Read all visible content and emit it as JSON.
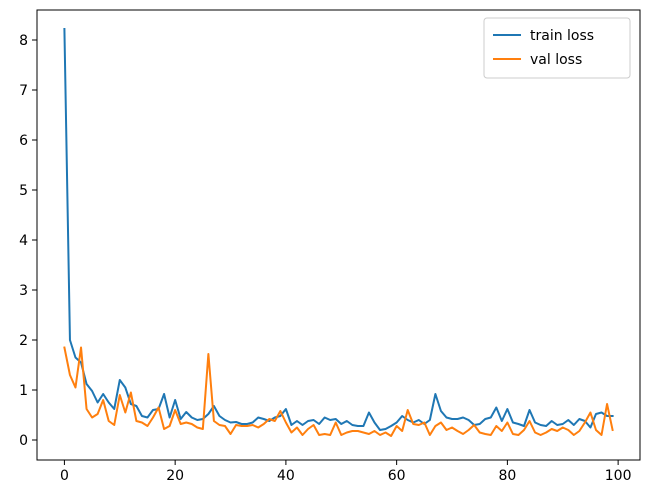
{
  "chart_data": {
    "type": "line",
    "title": "",
    "xlabel": "",
    "ylabel": "",
    "xlim": [
      -4.95,
      103.95
    ],
    "ylim": [
      -0.4,
      8.6
    ],
    "xticks": [
      0,
      20,
      40,
      60,
      80,
      100
    ],
    "yticks": [
      0,
      1,
      2,
      3,
      4,
      5,
      6,
      7,
      8
    ],
    "grid": false,
    "legend": "top-right",
    "x": [
      0,
      1,
      2,
      3,
      4,
      5,
      6,
      7,
      8,
      9,
      10,
      11,
      12,
      13,
      14,
      15,
      16,
      17,
      18,
      19,
      20,
      21,
      22,
      23,
      24,
      25,
      26,
      27,
      28,
      29,
      30,
      31,
      32,
      33,
      34,
      35,
      36,
      37,
      38,
      39,
      40,
      41,
      42,
      43,
      44,
      45,
      46,
      47,
      48,
      49,
      50,
      51,
      52,
      53,
      54,
      55,
      56,
      57,
      58,
      59,
      60,
      61,
      62,
      63,
      64,
      65,
      66,
      67,
      68,
      69,
      70,
      71,
      72,
      73,
      74,
      75,
      76,
      77,
      78,
      79,
      80,
      81,
      82,
      83,
      84,
      85,
      86,
      87,
      88,
      89,
      90,
      91,
      92,
      93,
      94,
      95,
      96,
      97,
      98,
      99
    ],
    "series": [
      {
        "name": "train loss",
        "color": "#1f77b4",
        "values": [
          8.22,
          2.0,
          1.65,
          1.55,
          1.12,
          0.98,
          0.75,
          0.92,
          0.75,
          0.62,
          1.2,
          1.05,
          0.72,
          0.68,
          0.48,
          0.45,
          0.6,
          0.62,
          0.92,
          0.45,
          0.8,
          0.42,
          0.56,
          0.45,
          0.4,
          0.42,
          0.52,
          0.68,
          0.48,
          0.4,
          0.35,
          0.36,
          0.32,
          0.32,
          0.35,
          0.45,
          0.42,
          0.38,
          0.45,
          0.48,
          0.62,
          0.3,
          0.38,
          0.3,
          0.38,
          0.4,
          0.32,
          0.45,
          0.4,
          0.42,
          0.32,
          0.38,
          0.3,
          0.28,
          0.28,
          0.55,
          0.35,
          0.2,
          0.22,
          0.28,
          0.35,
          0.48,
          0.4,
          0.35,
          0.4,
          0.32,
          0.4,
          0.92,
          0.58,
          0.45,
          0.42,
          0.42,
          0.45,
          0.4,
          0.3,
          0.32,
          0.42,
          0.45,
          0.65,
          0.38,
          0.62,
          0.35,
          0.32,
          0.28,
          0.6,
          0.35,
          0.3,
          0.28,
          0.38,
          0.3,
          0.32,
          0.4,
          0.3,
          0.42,
          0.38,
          0.25,
          0.52,
          0.55,
          0.48,
          0.48
        ]
      },
      {
        "name": "val loss",
        "color": "#ff7f0e",
        "values": [
          1.85,
          1.3,
          1.05,
          1.85,
          0.62,
          0.45,
          0.52,
          0.8,
          0.38,
          0.3,
          0.9,
          0.55,
          0.95,
          0.38,
          0.35,
          0.28,
          0.45,
          0.65,
          0.22,
          0.28,
          0.6,
          0.32,
          0.35,
          0.32,
          0.25,
          0.22,
          1.72,
          0.38,
          0.3,
          0.28,
          0.12,
          0.3,
          0.28,
          0.28,
          0.3,
          0.25,
          0.32,
          0.42,
          0.38,
          0.58,
          0.35,
          0.15,
          0.25,
          0.1,
          0.22,
          0.3,
          0.1,
          0.12,
          0.1,
          0.35,
          0.1,
          0.15,
          0.18,
          0.18,
          0.15,
          0.12,
          0.18,
          0.1,
          0.15,
          0.08,
          0.28,
          0.18,
          0.6,
          0.32,
          0.3,
          0.35,
          0.1,
          0.28,
          0.35,
          0.2,
          0.25,
          0.18,
          0.12,
          0.2,
          0.3,
          0.15,
          0.12,
          0.1,
          0.28,
          0.18,
          0.35,
          0.12,
          0.1,
          0.2,
          0.38,
          0.15,
          0.1,
          0.15,
          0.22,
          0.18,
          0.25,
          0.2,
          0.1,
          0.18,
          0.35,
          0.55,
          0.2,
          0.1,
          0.72,
          0.2
        ]
      }
    ]
  }
}
